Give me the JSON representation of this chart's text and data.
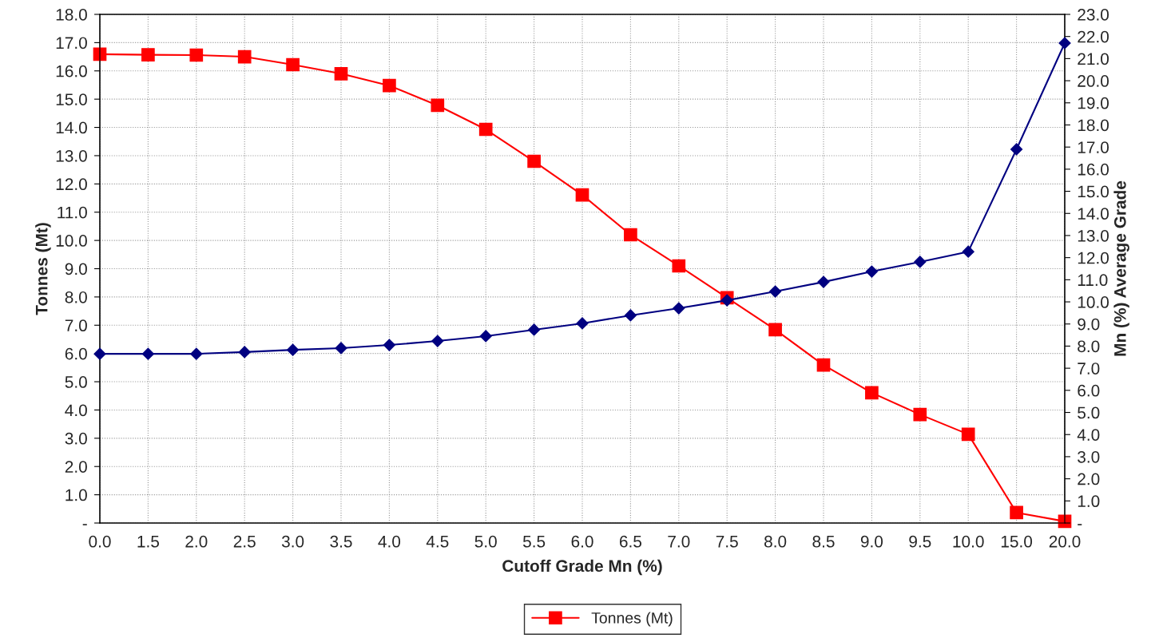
{
  "chart_data": {
    "type": "line",
    "xlabel": "Cutoff Grade Mn (%)",
    "ylabel": "Tonnes (Mt)",
    "y2label": "Mn (%) Average Grade",
    "categories": [
      "0.0",
      "1.5",
      "2.0",
      "2.5",
      "3.0",
      "3.5",
      "4.0",
      "4.5",
      "5.0",
      "5.5",
      "6.0",
      "6.5",
      "7.0",
      "7.5",
      "8.0",
      "8.5",
      "9.0",
      "9.5",
      "10.0",
      "15.0",
      "20.0"
    ],
    "series": [
      {
        "name": "Tonnes (Mt)",
        "color": "#ff0000",
        "marker": "square",
        "values": [
          16.59,
          16.57,
          16.56,
          16.5,
          16.22,
          15.9,
          15.48,
          14.78,
          13.93,
          12.8,
          11.61,
          10.2,
          9.1,
          7.97,
          6.84,
          5.59,
          4.61,
          3.84,
          3.14,
          0.37,
          0.06
        ]
      },
      {
        "color": "#000080",
        "marker": "diamond",
        "axis": "y2",
        "values": [
          7.65,
          7.65,
          7.65,
          7.73,
          7.83,
          7.91,
          8.05,
          8.23,
          8.45,
          8.74,
          9.03,
          9.39,
          9.71,
          10.07,
          10.47,
          10.9,
          11.37,
          11.81,
          12.27,
          16.9,
          21.7
        ]
      }
    ],
    "ylim": [
      0,
      18
    ],
    "yticks": [
      {
        "value": 0,
        "label": "-"
      },
      {
        "value": 1,
        "label": "1.0"
      },
      {
        "value": 2,
        "label": "2.0"
      },
      {
        "value": 3,
        "label": "3.0"
      },
      {
        "value": 4,
        "label": "4.0"
      },
      {
        "value": 5,
        "label": "5.0"
      },
      {
        "value": 6,
        "label": "6.0"
      },
      {
        "value": 7,
        "label": "7.0"
      },
      {
        "value": 8,
        "label": "8.0"
      },
      {
        "value": 9,
        "label": "9.0"
      },
      {
        "value": 10,
        "label": "10.0"
      },
      {
        "value": 11,
        "label": "11.0"
      },
      {
        "value": 12,
        "label": "12.0"
      },
      {
        "value": 13,
        "label": "13.0"
      },
      {
        "value": 14,
        "label": "14.0"
      },
      {
        "value": 15,
        "label": "15.0"
      },
      {
        "value": 16,
        "label": "16.0"
      },
      {
        "value": 17,
        "label": "17.0"
      },
      {
        "value": 18,
        "label": "18.0"
      }
    ],
    "y2lim": [
      0,
      23
    ],
    "y2ticks": [
      {
        "value": 0,
        "label": "-"
      },
      {
        "value": 1,
        "label": "1.0"
      },
      {
        "value": 2,
        "label": "2.0"
      },
      {
        "value": 3,
        "label": "3.0"
      },
      {
        "value": 4,
        "label": "4.0"
      },
      {
        "value": 5,
        "label": "5.0"
      },
      {
        "value": 6,
        "label": "6.0"
      },
      {
        "value": 7,
        "label": "7.0"
      },
      {
        "value": 8,
        "label": "8.0"
      },
      {
        "value": 9,
        "label": "9.0"
      },
      {
        "value": 10,
        "label": "10.0"
      },
      {
        "value": 11,
        "label": "11.0"
      },
      {
        "value": 12,
        "label": "12.0"
      },
      {
        "value": 13,
        "label": "13.0"
      },
      {
        "value": 14,
        "label": "14.0"
      },
      {
        "value": 15,
        "label": "15.0"
      },
      {
        "value": 16,
        "label": "16.0"
      },
      {
        "value": 17,
        "label": "17.0"
      },
      {
        "value": 18,
        "label": "18.0"
      },
      {
        "value": 19,
        "label": "19.0"
      },
      {
        "value": 20,
        "label": "20.0"
      },
      {
        "value": 21,
        "label": "21.0"
      },
      {
        "value": 22,
        "label": "22.0"
      },
      {
        "value": 23,
        "label": "23.0"
      }
    ],
    "grid": true,
    "legend": "bottom",
    "line_style": "solid"
  }
}
